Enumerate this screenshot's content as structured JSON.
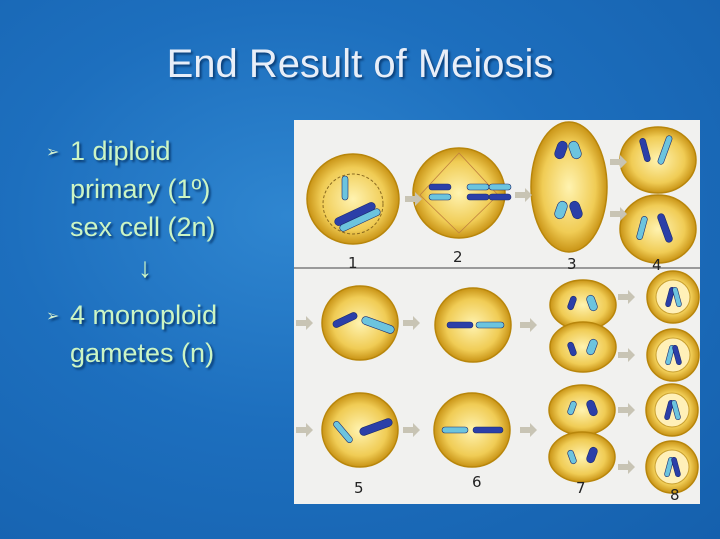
{
  "slide": {
    "title": "End Result of Meiosis",
    "bullets": [
      {
        "icon": "arrowhead-bullet-icon",
        "lines": [
          "1 diploid",
          "primary (1º)",
          "sex cell (2n)"
        ]
      },
      {
        "icon": "arrowhead-bullet-icon",
        "lines": [
          "4 monoploid",
          "gametes (n)"
        ]
      }
    ],
    "down_arrow": "↓"
  },
  "figure": {
    "stage_labels": [
      "1",
      "2",
      "3",
      "4",
      "5",
      "6",
      "7",
      "8"
    ],
    "colors": {
      "cell": "#e8b838",
      "chromosome_dark": "#2b3fa8",
      "chromosome_light": "#6cc4de",
      "background": "#1d6fbe",
      "text": "#ccf5c4"
    }
  }
}
